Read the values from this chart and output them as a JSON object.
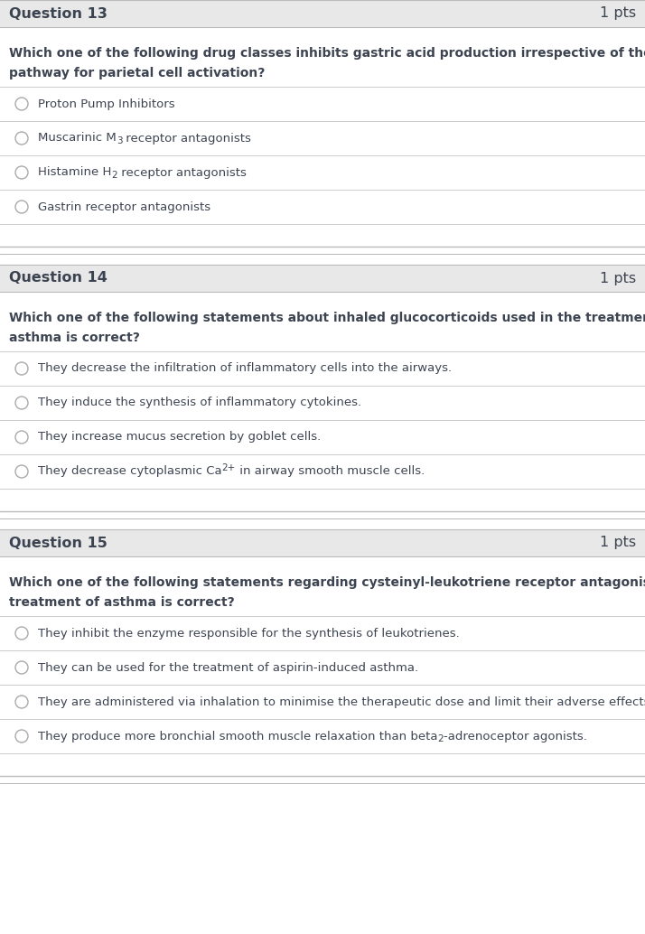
{
  "bg_color": "#ffffff",
  "header_bg": "#e8e8e8",
  "text_color": "#3d4451",
  "line_color": "#cccccc",
  "header_line_color": "#bbbbbb",
  "gap_line_color": "#aaaaaa",
  "sections": [
    {
      "question_num": "Question 13",
      "pts": "1 pts",
      "question_text_line1": "Which one of the following drug classes inhibits gastric acid production irrespective of the",
      "question_text_line2": "pathway for parietal cell activation?",
      "options": [
        {
          "text": "Proton Pump Inhibitors",
          "parts": [
            {
              "t": "Proton Pump Inhibitors",
              "style": "normal"
            }
          ]
        },
        {
          "text": "Muscarinic M3 receptor antagonists",
          "parts": [
            {
              "t": "Muscarinic M",
              "style": "normal"
            },
            {
              "t": "3",
              "style": "sub"
            },
            {
              "t": " receptor antagonists",
              "style": "normal"
            }
          ]
        },
        {
          "text": "Histamine H2 receptor antagonists",
          "parts": [
            {
              "t": "Histamine H",
              "style": "normal"
            },
            {
              "t": "2",
              "style": "sub"
            },
            {
              "t": " receptor antagonists",
              "style": "normal"
            }
          ]
        },
        {
          "text": "Gastrin receptor antagonists",
          "parts": [
            {
              "t": "Gastrin receptor antagonists",
              "style": "normal"
            }
          ]
        }
      ]
    },
    {
      "question_num": "Question 14",
      "pts": "1 pts",
      "question_text_line1": "Which one of the following statements about inhaled glucocorticoids used in the treatment of",
      "question_text_line2": "asthma is correct?",
      "options": [
        {
          "text": "They decrease the infiltration of inflammatory cells into the airways.",
          "parts": [
            {
              "t": "They decrease the infiltration of inflammatory cells into the airways.",
              "style": "normal"
            }
          ]
        },
        {
          "text": "They induce the synthesis of inflammatory cytokines.",
          "parts": [
            {
              "t": "They induce the synthesis of inflammatory cytokines.",
              "style": "normal"
            }
          ]
        },
        {
          "text": "They increase mucus secretion by goblet cells.",
          "parts": [
            {
              "t": "They increase mucus secretion by goblet cells.",
              "style": "normal"
            }
          ]
        },
        {
          "text": "They decrease cytoplasmic Ca2+ in airway smooth muscle cells.",
          "parts": [
            {
              "t": "They decrease cytoplasmic Ca",
              "style": "normal"
            },
            {
              "t": "2+",
              "style": "super"
            },
            {
              "t": " in airway smooth muscle cells.",
              "style": "normal"
            }
          ]
        }
      ]
    },
    {
      "question_num": "Question 15",
      "pts": "1 pts",
      "question_text_line1": "Which one of the following statements regarding cysteinyl-leukotriene receptor antagonists in the",
      "question_text_line2": "treatment of asthma is correct?",
      "options": [
        {
          "text": "They inhibit the enzyme responsible for the synthesis of leukotrienes.",
          "parts": [
            {
              "t": "They inhibit the enzyme responsible for the synthesis of leukotrienes.",
              "style": "normal"
            }
          ]
        },
        {
          "text": "They can be used for the treatment of aspirin-induced asthma.",
          "parts": [
            {
              "t": "They can be used for the treatment of aspirin-induced asthma.",
              "style": "normal"
            }
          ]
        },
        {
          "text": "They are administered via inhalation to minimise the therapeutic dose and limit their adverse effects.",
          "parts": [
            {
              "t": "They are administered via inhalation to minimise the therapeutic dose and limit their adverse effects.",
              "style": "normal"
            }
          ]
        },
        {
          "text": "They produce more bronchial smooth muscle relaxation than beta2-adrenoceptor agonists.",
          "parts": [
            {
              "t": "They produce more bronchial smooth muscle relaxation than beta",
              "style": "normal"
            },
            {
              "t": "2",
              "style": "sub"
            },
            {
              "t": "-adrenoceptor agonists.",
              "style": "normal"
            }
          ]
        }
      ]
    }
  ]
}
